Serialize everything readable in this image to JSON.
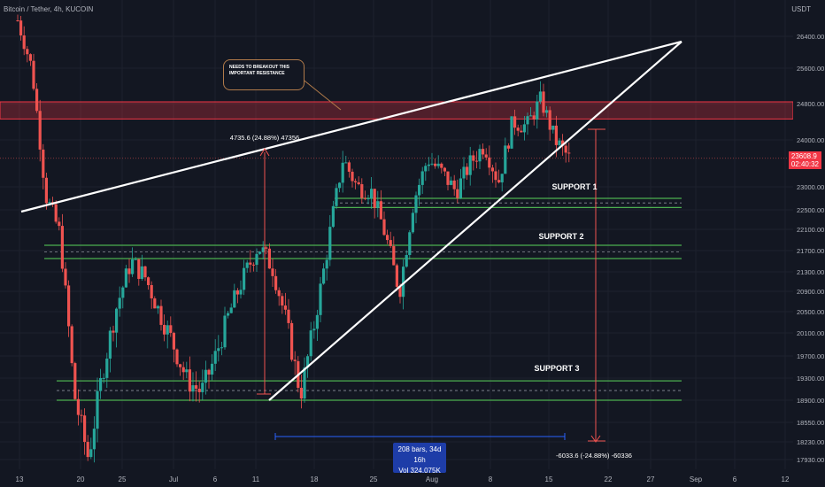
{
  "header": {
    "symbol": "Bitcoin / Tether, 4h, KUCOIN",
    "currency": "USDT"
  },
  "annotations": {
    "resistance_note": "NEEDS TO BREAKOUT THIS IMPORTANT RESISTANCE",
    "support1": "SUPPORT 1",
    "support2": "SUPPORT 2",
    "support3": "SUPPORT 3",
    "rise_label": "4735.6 (24.88%) 47356",
    "drop_label": "-6033.6 (-24.88%) -60336",
    "bars_label": "208 bars, 34d 16h",
    "vol_label": "Vol 324.075K"
  },
  "price_tag": {
    "price": "23608.9",
    "countdown": "02:40:32"
  },
  "colors": {
    "background": "#131722",
    "up": "#26a69a",
    "down": "#ef5350",
    "support": "#4caf50",
    "resistance_zone": "#f23645",
    "trendline": "#ffffff",
    "measure": "#2962ff"
  },
  "chart_data": {
    "type": "candlestick",
    "symbol": "Bitcoin / Tether",
    "interval": "4h",
    "exchange": "KUCOIN",
    "y_axis_ticks": [
      26400,
      25600,
      24800,
      24000,
      23000,
      22500,
      22100,
      21700,
      21300,
      20900,
      20500,
      20100,
      19700,
      19300,
      18900,
      18550,
      18230,
      17930
    ],
    "x_axis_ticks": [
      "13",
      "20",
      "25",
      "Jul",
      "6",
      "11",
      "18",
      "25",
      "Aug",
      "8",
      "15",
      "22",
      "27",
      "Sep",
      "6",
      "12"
    ],
    "last_price": 23608.9,
    "close_path": [
      [
        "13",
        26800
      ],
      [
        "13",
        25600
      ],
      [
        "13",
        22800
      ],
      [
        "20",
        22000
      ],
      [
        "20",
        19000
      ],
      [
        "20",
        17950
      ],
      [
        "20",
        19400
      ],
      [
        "20",
        20600
      ],
      [
        "25",
        21500
      ],
      [
        "25",
        21200
      ],
      [
        "25",
        20500
      ],
      [
        "Jul",
        19900
      ],
      [
        "Jul",
        19250
      ],
      [
        "Jul",
        19050
      ],
      [
        "6",
        19700
      ],
      [
        "6",
        20500
      ],
      [
        "6",
        21200
      ],
      [
        "11",
        21800
      ],
      [
        "11",
        21400
      ],
      [
        "11",
        20300
      ],
      [
        "11",
        19000
      ],
      [
        "18",
        20300
      ],
      [
        "18",
        21900
      ],
      [
        "18",
        23600
      ],
      [
        "18",
        23000
      ],
      [
        "25",
        22900
      ],
      [
        "25",
        22000
      ],
      [
        "25",
        20900
      ],
      [
        "Aug",
        22700
      ],
      [
        "Aug",
        23600
      ],
      [
        "Aug",
        23300
      ],
      [
        "8",
        22900
      ],
      [
        "8",
        23500
      ],
      [
        "8",
        23900
      ],
      [
        "8",
        23100
      ],
      [
        "15",
        24400
      ],
      [
        "15",
        24300
      ],
      [
        "15",
        24900
      ],
      [
        "15",
        24000
      ],
      [
        "15",
        23608.9
      ]
    ],
    "support_levels": [
      {
        "label": "SUPPORT 1",
        "upper": 22750,
        "lower": 22550
      },
      {
        "label": "SUPPORT 2",
        "upper": 21800,
        "lower": 21550
      },
      {
        "label": "SUPPORT 3",
        "upper": 19250,
        "lower": 18900
      }
    ],
    "resistance_zone": {
      "upper": 24800,
      "lower": 24500
    },
    "trendlines": [
      {
        "name": "upper",
        "from": [
          "13",
          22500
        ],
        "to": [
          "Sep",
          26300
        ]
      },
      {
        "name": "lower",
        "from": [
          "11",
          18900
        ],
        "to": [
          "22",
          24700
        ]
      }
    ]
  }
}
